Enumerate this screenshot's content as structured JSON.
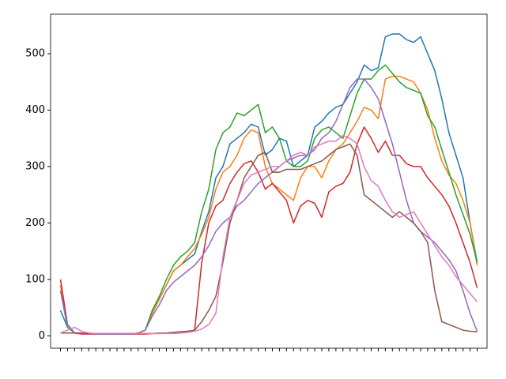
{
  "chart_data": {
    "type": "line",
    "x": [
      0,
      1,
      2,
      3,
      4,
      5,
      6,
      7,
      8,
      9,
      10,
      11,
      12,
      13,
      14,
      15,
      16,
      17,
      18,
      19,
      20,
      21,
      22,
      23,
      24,
      25,
      26,
      27,
      28,
      29,
      30,
      31,
      32,
      33,
      34,
      35,
      36,
      37,
      38,
      39,
      40,
      41,
      42,
      43,
      44,
      45,
      46,
      47,
      48,
      49,
      50,
      51,
      52,
      53,
      54,
      55,
      56,
      57,
      58,
      59
    ],
    "xlim": [
      -1.4,
      60.4
    ],
    "ylim": [
      -22,
      570
    ],
    "yticks": [
      0,
      100,
      200,
      300,
      400,
      500
    ],
    "series": [
      {
        "color": "#1f77b4",
        "values": [
          45,
          15,
          5,
          4,
          4,
          3,
          3,
          3,
          3,
          3,
          3,
          5,
          10,
          40,
          65,
          90,
          115,
          125,
          135,
          145,
          185,
          220,
          280,
          300,
          340,
          350,
          360,
          375,
          370,
          320,
          330,
          350,
          345,
          300,
          310,
          320,
          370,
          380,
          395,
          405,
          410,
          430,
          450,
          480,
          470,
          475,
          530,
          535,
          535,
          525,
          520,
          530,
          500,
          470,
          420,
          360,
          320,
          280,
          200,
          130
        ]
      },
      {
        "color": "#ff7f0e",
        "values": [
          90,
          15,
          5,
          4,
          4,
          3,
          3,
          3,
          3,
          3,
          3,
          5,
          10,
          40,
          65,
          90,
          115,
          125,
          140,
          155,
          180,
          210,
          260,
          290,
          300,
          320,
          350,
          365,
          360,
          300,
          270,
          260,
          250,
          240,
          280,
          300,
          300,
          280,
          310,
          330,
          340,
          360,
          380,
          405,
          400,
          385,
          455,
          460,
          460,
          455,
          450,
          430,
          400,
          350,
          310,
          285,
          270,
          240,
          200,
          125
        ]
      },
      {
        "color": "#2ca02c",
        "values": [
          80,
          15,
          5,
          4,
          4,
          3,
          3,
          3,
          3,
          3,
          3,
          5,
          10,
          45,
          70,
          100,
          125,
          140,
          150,
          165,
          220,
          260,
          330,
          360,
          370,
          395,
          390,
          400,
          410,
          360,
          370,
          350,
          310,
          300,
          300,
          310,
          350,
          365,
          370,
          360,
          350,
          390,
          430,
          455,
          455,
          470,
          480,
          465,
          450,
          440,
          435,
          430,
          390,
          370,
          330,
          290,
          250,
          215,
          180,
          130
        ]
      },
      {
        "color": "#d62728",
        "values": [
          100,
          20,
          5,
          3,
          3,
          3,
          3,
          3,
          3,
          3,
          3,
          3,
          3,
          4,
          4,
          5,
          6,
          7,
          8,
          10,
          130,
          200,
          230,
          240,
          270,
          290,
          305,
          310,
          290,
          260,
          270,
          255,
          240,
          200,
          230,
          240,
          235,
          210,
          255,
          265,
          270,
          290,
          340,
          370,
          350,
          325,
          345,
          320,
          320,
          305,
          300,
          300,
          280,
          265,
          250,
          230,
          200,
          165,
          130,
          85
        ]
      },
      {
        "color": "#9467bd",
        "values": [
          80,
          20,
          5,
          4,
          4,
          3,
          3,
          3,
          3,
          3,
          3,
          5,
          10,
          35,
          55,
          80,
          95,
          105,
          115,
          125,
          140,
          160,
          185,
          200,
          210,
          230,
          240,
          255,
          270,
          280,
          290,
          300,
          310,
          315,
          320,
          320,
          330,
          350,
          360,
          380,
          410,
          440,
          455,
          455,
          440,
          420,
          380,
          340,
          290,
          240,
          200,
          185,
          175,
          165,
          150,
          135,
          115,
          80,
          40,
          8
        ]
      },
      {
        "color": "#8c564b",
        "values": [
          5,
          5,
          5,
          5,
          4,
          4,
          4,
          4,
          4,
          4,
          4,
          4,
          4,
          4,
          5,
          5,
          6,
          7,
          8,
          10,
          25,
          45,
          70,
          130,
          200,
          240,
          280,
          300,
          320,
          325,
          290,
          290,
          295,
          295,
          295,
          300,
          305,
          310,
          320,
          330,
          335,
          340,
          320,
          250,
          240,
          230,
          220,
          210,
          220,
          210,
          200,
          185,
          165,
          80,
          25,
          20,
          15,
          10,
          8,
          7
        ]
      },
      {
        "color": "#e377c2",
        "values": [
          5,
          10,
          15,
          8,
          5,
          4,
          4,
          4,
          4,
          4,
          4,
          4,
          4,
          4,
          4,
          4,
          4,
          5,
          6,
          8,
          12,
          20,
          40,
          140,
          210,
          240,
          270,
          285,
          290,
          295,
          300,
          300,
          310,
          320,
          325,
          320,
          335,
          340,
          345,
          345,
          355,
          350,
          340,
          300,
          275,
          265,
          240,
          220,
          210,
          215,
          220,
          200,
          180,
          160,
          140,
          125,
          105,
          90,
          75,
          60
        ]
      }
    ]
  }
}
